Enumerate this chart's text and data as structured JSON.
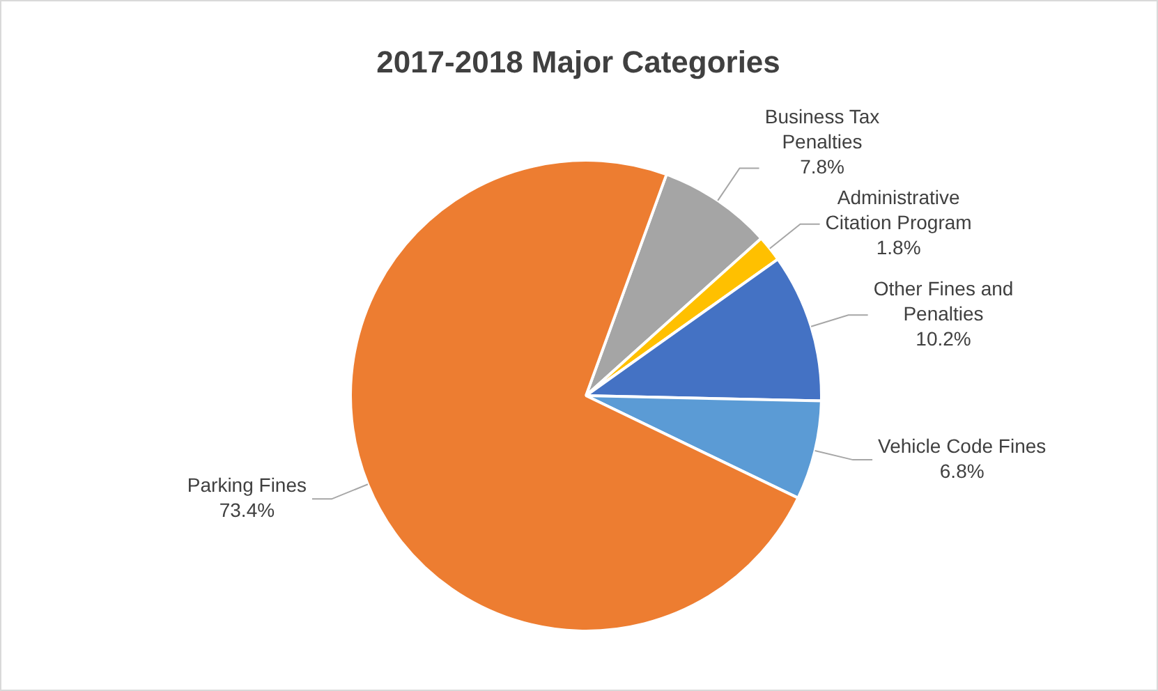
{
  "chart_data": {
    "type": "pie",
    "title": "2017-2018 Major Categories",
    "categories": [
      "Business Tax Penalties",
      "Administrative Citation Program",
      "Other Fines and Penalties",
      "Vehicle Code Fines",
      "Parking Fines"
    ],
    "values": [
      7.8,
      1.8,
      10.2,
      6.8,
      73.4
    ],
    "value_labels": [
      "7.8%",
      "1.8%",
      "10.2%",
      "6.8%",
      "73.4%"
    ],
    "colors": [
      "#a5a5a5",
      "#ffc000",
      "#4472c4",
      "#5b9bd5",
      "#ed7d31"
    ],
    "legend": false
  }
}
